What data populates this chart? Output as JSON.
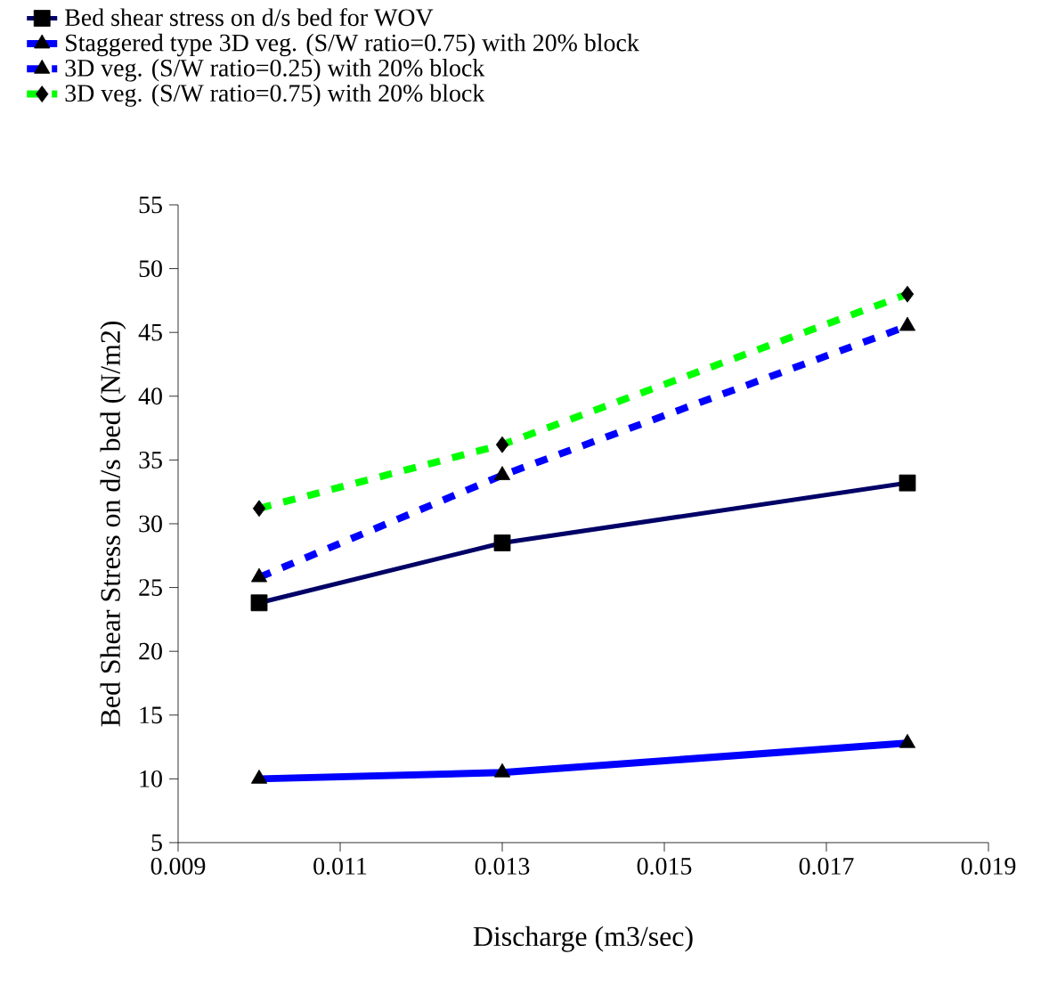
{
  "chart_data": {
    "type": "line",
    "xlabel": "Discharge (m3/sec)",
    "ylabel": "Bed Shear Stress on d/s bed (N/m2)",
    "x": [
      0.01,
      0.013,
      0.018
    ],
    "series": [
      {
        "name": "Bed shear stress on d/s bed for WOV",
        "color": "#000066",
        "values": [
          23.8,
          28.5,
          33.2
        ],
        "marker": "square",
        "line_style": "solid"
      },
      {
        "name": "Staggered type 3D veg. (S/W ratio=0.75) with 20% block",
        "color": "#0000ff",
        "values": [
          10,
          10.5,
          12.8
        ],
        "marker": "triangle",
        "line_style": "solid"
      },
      {
        "name": "3D veg. (S/W ratio=0.25) with 20% block",
        "color": "#0000ff",
        "values": [
          25.8,
          33.8,
          45.5
        ],
        "marker": "triangle",
        "line_style": "dashed"
      },
      {
        "name": "3D veg. (S/W ratio=0.75) with 20% block",
        "color": "#00ff00",
        "values": [
          31.2,
          36.2,
          48
        ],
        "marker": "diamond",
        "line_style": "dashed"
      }
    ],
    "xlim": [
      0.009,
      0.019
    ],
    "xticks": [
      0.009,
      0.011,
      0.013,
      0.015,
      0.017,
      0.019
    ],
    "ylim": [
      5,
      55
    ],
    "yticks": [
      5,
      10,
      15,
      20,
      25,
      30,
      35,
      40,
      45,
      50,
      55
    ],
    "legend": "top left",
    "grid": false
  }
}
